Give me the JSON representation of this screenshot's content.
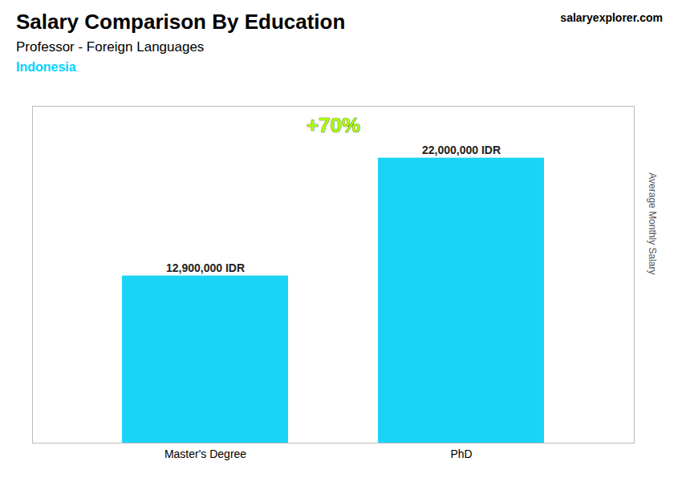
{
  "chart_data": {
    "type": "bar",
    "title": "Salary Comparison By Education",
    "subtitle": "Professor - Foreign Languages",
    "annotations": [
      {
        "text": "Indonesia",
        "color": "#00d4ff"
      },
      {
        "text": "salaryexplorer.com"
      },
      {
        "text": "+70%",
        "color": "#aaff00"
      }
    ],
    "y_label": "Average Monthly Salary",
    "categories": [
      "Master's Degree",
      "PhD"
    ],
    "values": [
      12900000,
      22000000
    ],
    "value_labels": [
      "12,900,000 IDR",
      "22,000,000 IDR"
    ],
    "data_labels": true,
    "color": "#1ad4f5",
    "ylim": [
      0,
      26000000
    ],
    "tick_labels": "x",
    "grid": false
  }
}
